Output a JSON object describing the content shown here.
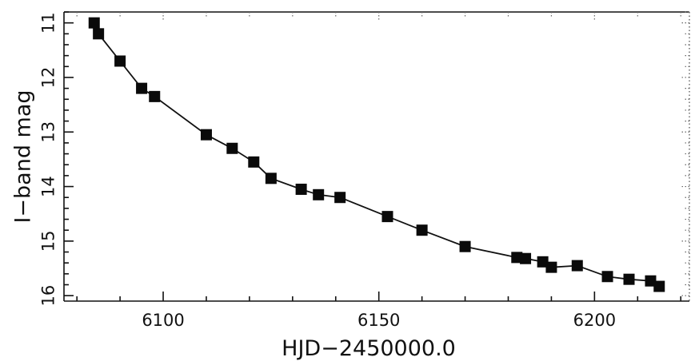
{
  "chart_data": {
    "type": "line",
    "title": "",
    "xlabel": "HJD−2450000.0",
    "ylabel": "I−band mag",
    "xlim": [
      6077,
      6222
    ],
    "ylim": [
      16.1,
      10.8
    ],
    "y_inverted": true,
    "x_ticks": [
      {
        "value": 6100,
        "label": "6100"
      },
      {
        "value": 6150,
        "label": "6150"
      },
      {
        "value": 6200,
        "label": "6200"
      }
    ],
    "y_ticks": [
      {
        "value": 11,
        "label": "11"
      },
      {
        "value": 12,
        "label": "12"
      },
      {
        "value": 13,
        "label": "13"
      },
      {
        "value": 14,
        "label": "14"
      },
      {
        "value": 15,
        "label": "15"
      },
      {
        "value": 16,
        "label": "16"
      }
    ],
    "x_minor_step": 10,
    "y_minor_step": 0.2,
    "grid": false,
    "marker": "filled-square",
    "connected": true,
    "colors": {
      "line": "#111111",
      "marker": "#0a0a0a",
      "frame": "#111111"
    },
    "series": [
      {
        "x": [
          6084,
          6085,
          6090,
          6095,
          6098,
          6110,
          6116,
          6121,
          6125,
          6132,
          6136,
          6141,
          6152,
          6160,
          6170,
          6182,
          6184,
          6188,
          6190,
          6196,
          6203,
          6208,
          6213,
          6215
        ],
        "y": [
          11.0,
          11.2,
          11.7,
          12.2,
          12.35,
          13.05,
          13.3,
          13.55,
          13.85,
          14.05,
          14.15,
          14.2,
          14.55,
          14.8,
          15.1,
          15.3,
          15.32,
          15.38,
          15.48,
          15.45,
          15.65,
          15.7,
          15.73,
          15.83
        ]
      }
    ]
  }
}
